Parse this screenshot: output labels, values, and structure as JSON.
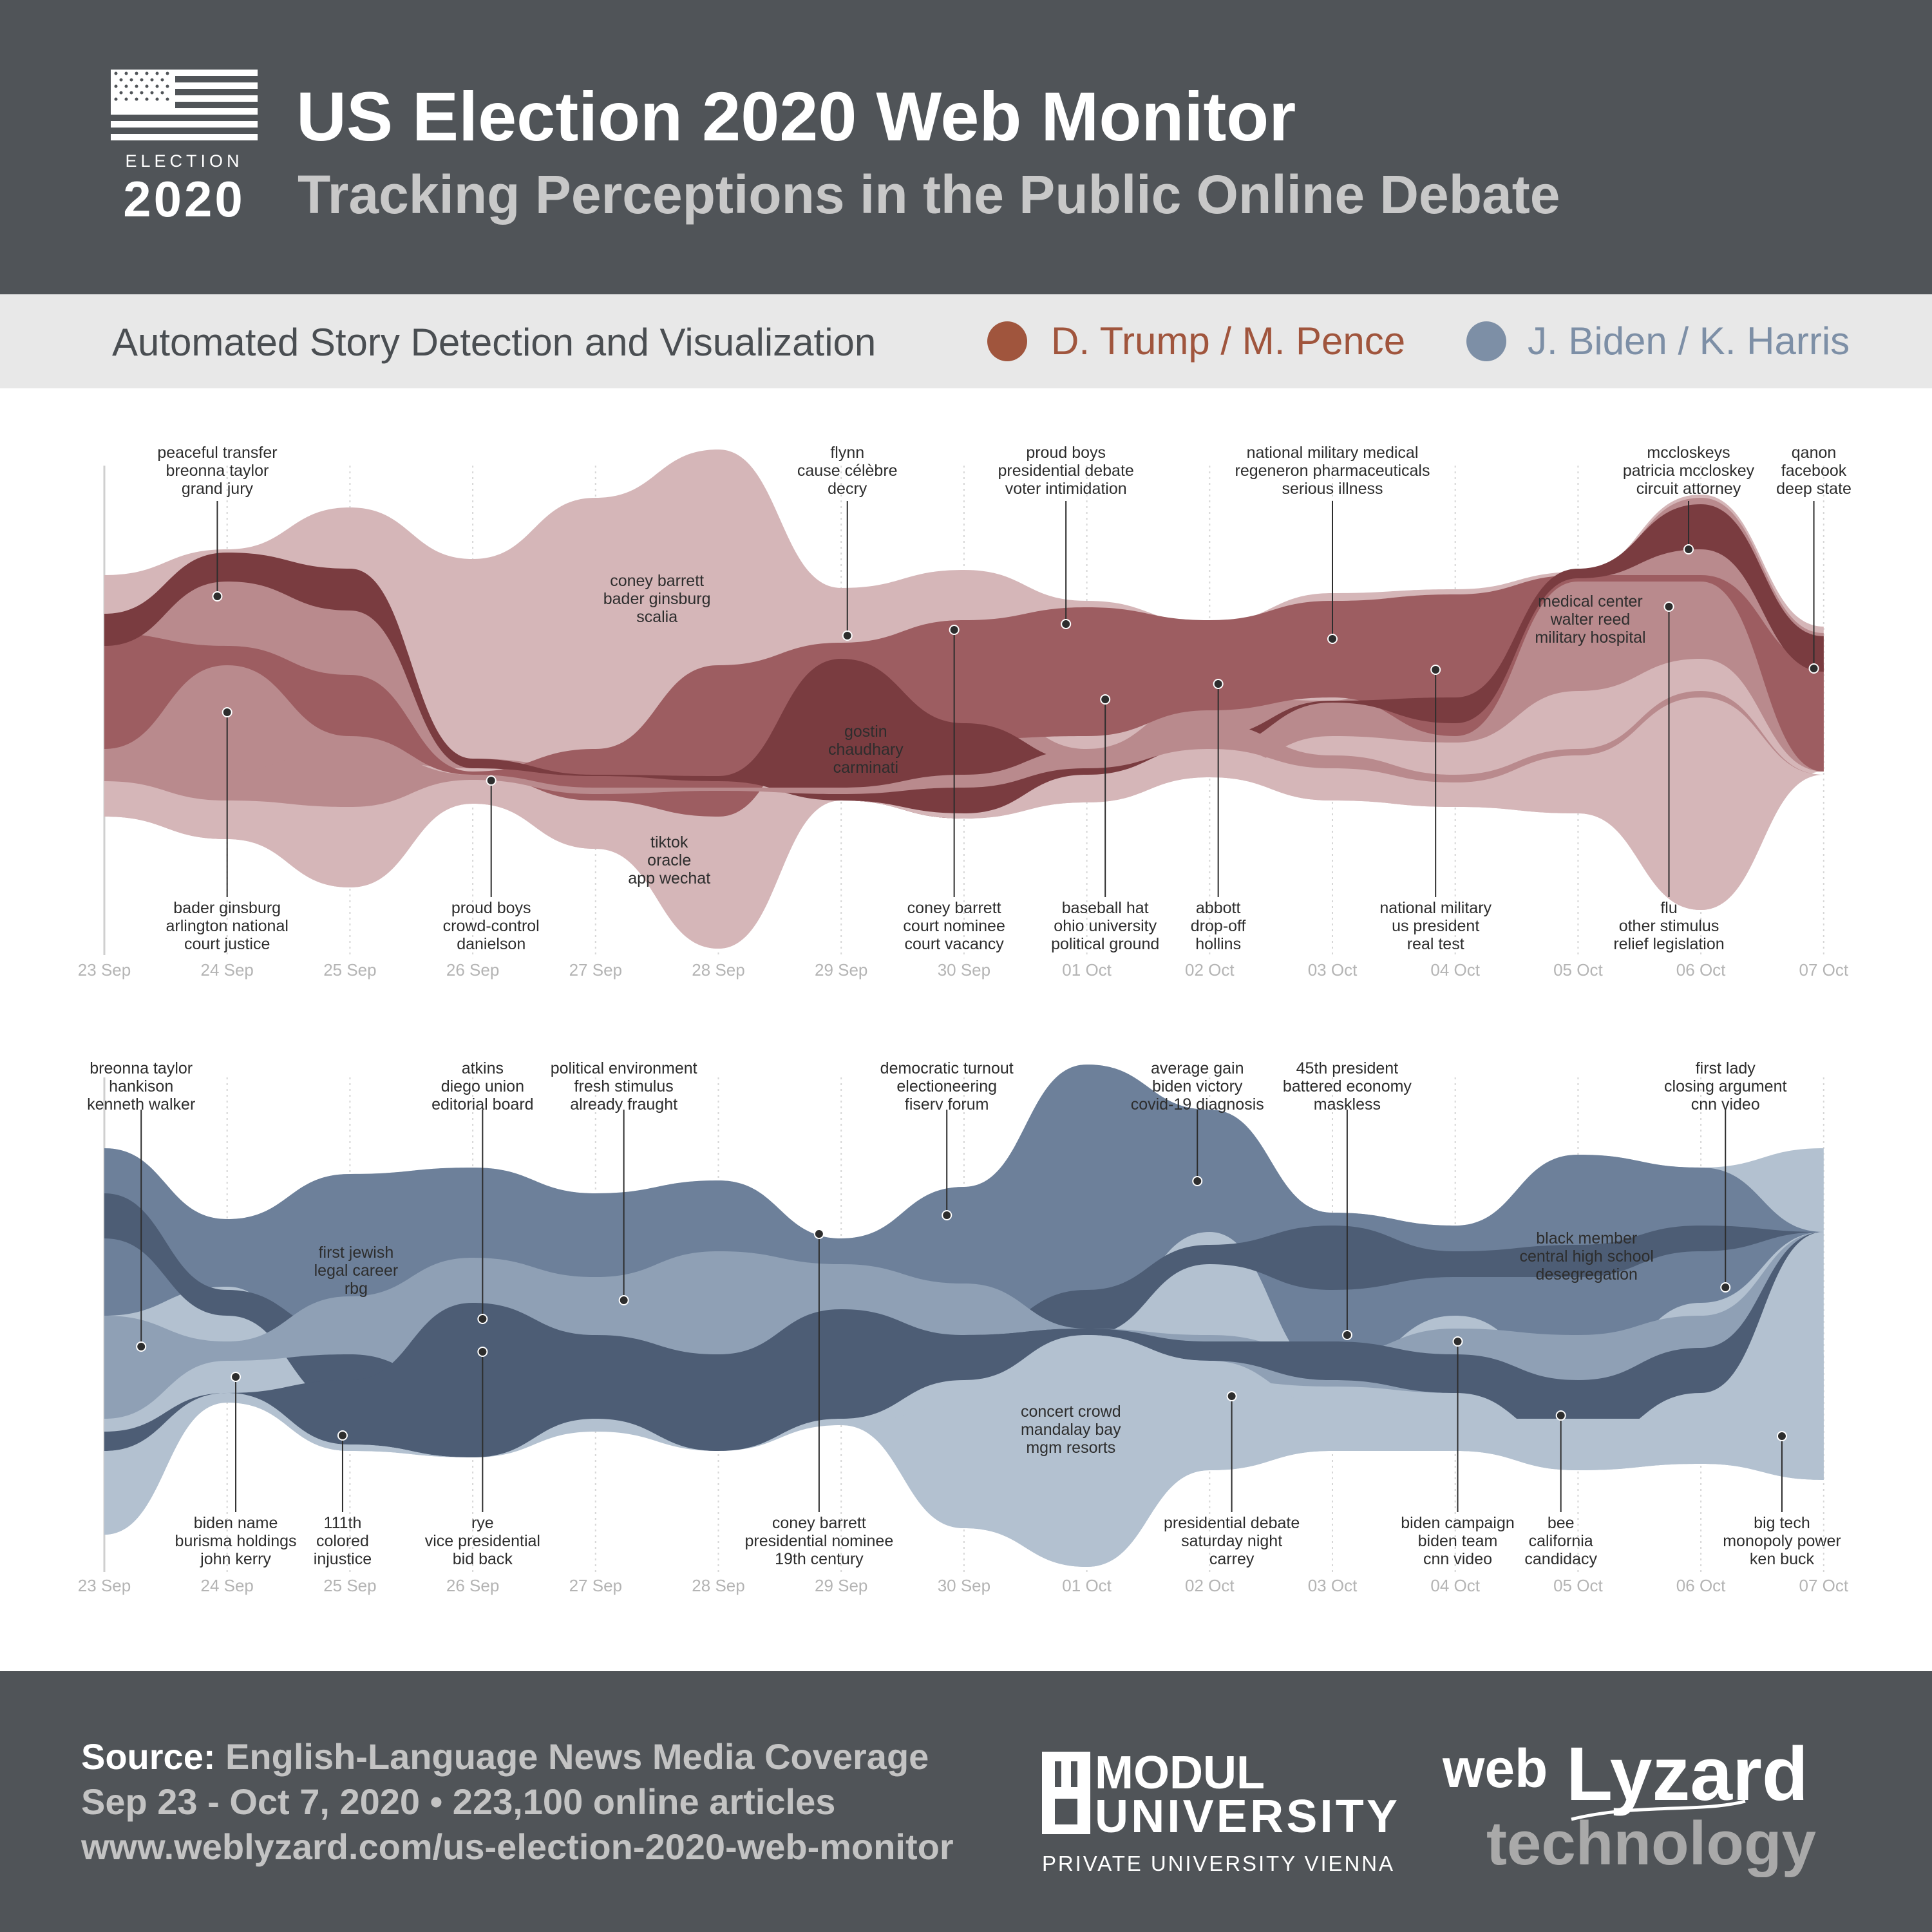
{
  "header": {
    "flag_text_1": "ELECTION",
    "flag_text_2": "2020",
    "title": "US Election 2020 Web Monitor",
    "subtitle": "Tracking Perceptions in the Public Online Debate"
  },
  "legend": {
    "heading": "Automated Story Detection and Visualization",
    "items": [
      {
        "label": "D. Trump / M. Pence",
        "color": "#a0553d"
      },
      {
        "label": "J. Biden / K. Harris",
        "color": "#7d8fa6"
      }
    ]
  },
  "colors": {
    "trump_light": "#d5b6b8",
    "trump_mid": "#b98a8d",
    "trump_medium": "#9d5d61",
    "trump_dark": "#7a3c40",
    "biden_light": "#b3c1d0",
    "biden_mid": "#8fa0b5",
    "biden_medium": "#6d809a",
    "biden_dark": "#4d5d75"
  },
  "chart_data": [
    {
      "type": "streamgraph",
      "series_group": "D. Trump / M. Pence",
      "x_ticks": [
        "23 Sep",
        "24 Sep",
        "25 Sep",
        "26 Sep",
        "27 Sep",
        "28 Sep",
        "29 Sep",
        "30 Sep",
        "01 Oct",
        "02 Oct",
        "03 Oct",
        "04 Oct",
        "05 Oct",
        "06 Oct",
        "07 Oct"
      ],
      "annotations": [
        {
          "date_index": 0.92,
          "position": "top",
          "lines": [
            "peaceful transfer",
            "breonna taylor",
            "grand jury"
          ]
        },
        {
          "date_index": 1.0,
          "position": "bottom",
          "lines": [
            "bader ginsburg",
            "arlington national",
            "court justice"
          ]
        },
        {
          "date_index": 3.15,
          "position": "bottom",
          "lines": [
            "proud boys",
            "crowd-control",
            "danielson"
          ]
        },
        {
          "date_index": 4.5,
          "position": "inside",
          "lines": [
            "coney barrett",
            "bader ginsburg",
            "scalia"
          ]
        },
        {
          "date_index": 4.6,
          "position": "inside",
          "lines": [
            "tiktok",
            "oracle",
            "app wechat"
          ]
        },
        {
          "date_index": 6.05,
          "position": "top",
          "lines": [
            "flynn",
            "cause célèbre",
            "decry"
          ]
        },
        {
          "date_index": 6.2,
          "position": "inside",
          "lines": [
            "gostin",
            "chaudhary",
            "carminati"
          ]
        },
        {
          "date_index": 6.92,
          "position": "bottom",
          "lines": [
            "coney barrett",
            "court nominee",
            "court vacancy"
          ]
        },
        {
          "date_index": 7.83,
          "position": "top",
          "lines": [
            "proud boys",
            "presidential debate",
            "voter intimidation"
          ]
        },
        {
          "date_index": 8.15,
          "position": "bottom",
          "lines": [
            "baseball hat",
            "ohio university",
            "political ground"
          ]
        },
        {
          "date_index": 9.07,
          "position": "bottom",
          "lines": [
            "abbott",
            "drop-off",
            "hollins"
          ]
        },
        {
          "date_index": 10.0,
          "position": "top",
          "lines": [
            "national military medical",
            "regeneron pharmaceuticals",
            "serious illness"
          ]
        },
        {
          "date_index": 10.84,
          "position": "bottom",
          "lines": [
            "national military",
            "us president",
            "real test"
          ]
        },
        {
          "date_index": 12.1,
          "position": "inside",
          "lines": [
            "medical center",
            "walter reed",
            "military hospital"
          ]
        },
        {
          "date_index": 12.74,
          "position": "bottom",
          "lines": [
            "flu",
            "other stimulus",
            "relief legislation"
          ]
        },
        {
          "date_index": 12.9,
          "position": "top",
          "lines": [
            "mccloskeys",
            "patricia mccloskey",
            "circuit attorney"
          ]
        },
        {
          "date_index": 13.92,
          "position": "top",
          "lines": [
            "qanon",
            "facebook",
            "deep state"
          ]
        }
      ]
    },
    {
      "type": "streamgraph",
      "series_group": "J. Biden / K. Harris",
      "x_ticks": [
        "23 Sep",
        "24 Sep",
        "25 Sep",
        "26 Sep",
        "27 Sep",
        "28 Sep",
        "29 Sep",
        "30 Sep",
        "01 Oct",
        "02 Oct",
        "03 Oct",
        "04 Oct",
        "05 Oct",
        "06 Oct",
        "07 Oct"
      ],
      "annotations": [
        {
          "date_index": 0.3,
          "position": "top",
          "lines": [
            "breonna taylor",
            "hankison",
            "kenneth walker"
          ]
        },
        {
          "date_index": 1.07,
          "position": "bottom",
          "lines": [
            "biden name",
            "burisma holdings",
            "john kerry"
          ]
        },
        {
          "date_index": 2.05,
          "position": "inside",
          "lines": [
            "first jewish",
            "legal career",
            "rbg"
          ]
        },
        {
          "date_index": 1.94,
          "position": "bottom",
          "lines": [
            "111th",
            "colored",
            "injustice"
          ]
        },
        {
          "date_index": 3.08,
          "position": "top",
          "lines": [
            "atkins",
            "diego union",
            "editorial board"
          ]
        },
        {
          "date_index": 3.08,
          "position": "bottom",
          "lines": [
            "rye",
            "vice presidential",
            "bid back"
          ]
        },
        {
          "date_index": 4.23,
          "position": "top",
          "lines": [
            "political environment",
            "fresh stimulus",
            "already fraught"
          ]
        },
        {
          "date_index": 5.82,
          "position": "bottom",
          "lines": [
            "coney barrett",
            "presidential nominee",
            "19th century"
          ]
        },
        {
          "date_index": 6.86,
          "position": "top",
          "lines": [
            "democratic turnout",
            "electioneering",
            "fiserv forum"
          ]
        },
        {
          "date_index": 7.87,
          "position": "inside",
          "lines": [
            "concert crowd",
            "mandalay bay",
            "mgm resorts"
          ]
        },
        {
          "date_index": 8.9,
          "position": "top",
          "lines": [
            "average gain",
            "biden victory",
            "covid-19 diagnosis"
          ]
        },
        {
          "date_index": 9.18,
          "position": "bottom",
          "lines": [
            "presidential debate",
            "saturday night",
            "carrey"
          ]
        },
        {
          "date_index": 10.12,
          "position": "top",
          "lines": [
            "45th president",
            "battered economy",
            "maskless"
          ]
        },
        {
          "date_index": 11.02,
          "position": "bottom",
          "lines": [
            "biden campaign",
            "biden team",
            "cnn video"
          ]
        },
        {
          "date_index": 12.07,
          "position": "inside",
          "lines": [
            "black member",
            "central high school",
            "desegregation"
          ]
        },
        {
          "date_index": 11.86,
          "position": "bottom",
          "lines": [
            "bee",
            "california",
            "candidacy"
          ]
        },
        {
          "date_index": 13.2,
          "position": "top",
          "lines": [
            "first lady",
            "closing argument",
            "cnn video"
          ]
        },
        {
          "date_index": 13.66,
          "position": "bottom",
          "lines": [
            "big tech",
            "monopoly power",
            "ken buck"
          ]
        }
      ]
    }
  ],
  "footer": {
    "source_label": "Source:",
    "source_text": " English-Language News Media Coverage",
    "line2": "Sep 23 - Oct 7, 2020 • 223,100 online articles",
    "line3": "www.weblyzard.com/us-election-2020-web-monitor",
    "modul_1": "MODUL",
    "modul_2": "UNIVERSITY",
    "modul_3": "PRIVATE UNIVERSITY VIENNA",
    "web_1": "web",
    "web_2": "Lyzard",
    "web_3": "technology"
  }
}
